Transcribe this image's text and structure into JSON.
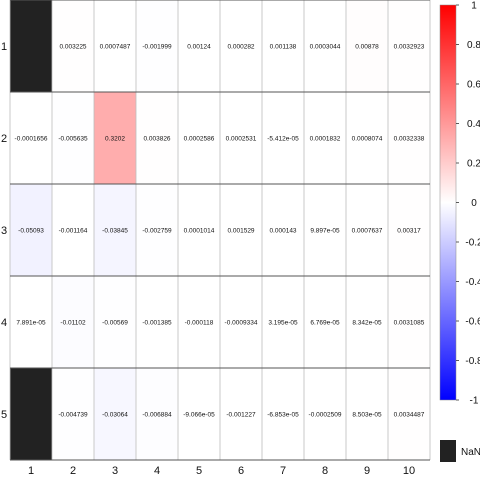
{
  "chart_data": {
    "type": "heatmap",
    "title": "",
    "xlabel": "",
    "ylabel": "",
    "x_categories": [
      "1",
      "2",
      "3",
      "4",
      "5",
      "6",
      "7",
      "8",
      "9",
      "10"
    ],
    "y_categories": [
      "1",
      "2",
      "3",
      "4",
      "5"
    ],
    "values": [
      [
        null,
        0.003225,
        0.0007487,
        -0.001999,
        0.00124,
        0.000282,
        0.001138,
        0.0003044,
        0.00878,
        0.0032923
      ],
      [
        -0.0001656,
        -0.005635,
        0.3202,
        0.003826,
        0.0002586,
        0.0002531,
        -5.412e-05,
        0.0001832,
        0.0008074,
        0.0032338
      ],
      [
        -0.05093,
        -0.001164,
        -0.03845,
        -0.002759,
        0.0001014,
        0.001529,
        0.000143,
        9.897e-05,
        0.0007637,
        0.00317
      ],
      [
        7.891e-05,
        -0.01102,
        -0.00569,
        -0.001385,
        -0.000118,
        -0.0009334,
        3.195e-05,
        6.769e-05,
        8.342e-05,
        0.0031085
      ],
      [
        null,
        -0.004739,
        -0.03064,
        -0.006884,
        -9.066e-05,
        -0.001227,
        -6.853e-05,
        -0.0002509,
        8.503e-05,
        0.0034487
      ]
    ],
    "labels": [
      [
        "",
        "0.003225",
        "0.0007487",
        "-0.001999",
        "0.00124",
        "0.000282",
        "0.001138",
        "0.0003044",
        "0.00878",
        "0.0032923"
      ],
      [
        "-0.0001656",
        "-0.005635",
        "0.3202",
        "0.003826",
        "0.0002586",
        "0.0002531",
        "-5.412e-05",
        "0.0001832",
        "0.0008074",
        "0.0032338"
      ],
      [
        "-0.05093",
        "-0.001164",
        "-0.03845",
        "-0.002759",
        "0.0001014",
        "0.001529",
        "0.000143",
        "9.897e-05",
        "0.0007637",
        "0.00317"
      ],
      [
        "7.891e-05",
        "-0.01102",
        "-0.00569",
        "-0.001385",
        "-0.000118",
        "-0.0009334",
        "3.195e-05",
        "6.769e-05",
        "8.342e-05",
        "0.0031085"
      ],
      [
        "",
        "-0.004739",
        "-0.03064",
        "-0.006884",
        "-9.066e-05",
        "-0.001227",
        "-6.853e-05",
        "-0.0002509",
        "8.503e-05",
        "0.0034487"
      ]
    ],
    "colorbar": {
      "range": [
        -1,
        1
      ],
      "ticks": [
        1,
        0.8,
        0.6,
        0.4,
        0.2,
        0,
        -0.2,
        -0.4,
        -0.6,
        -0.8,
        -1
      ],
      "tick_labels": [
        "1",
        "0.8",
        "0.6",
        "0.4",
        "0.2",
        "0",
        "-0.2",
        "-0.4",
        "-0.6",
        "-0.8",
        "-1"
      ],
      "colors": {
        "low": "#0000ff",
        "mid": "#ffffff",
        "high": "#ff0000"
      },
      "nan_label": "NaN",
      "nan_color": "#222222"
    },
    "grid": true
  }
}
